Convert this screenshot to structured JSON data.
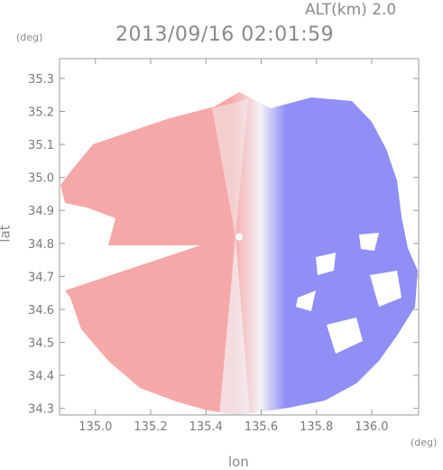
{
  "header": {
    "altitude": "ALT(km) 2.0",
    "timestamp": "2013/09/16 02:01:59"
  },
  "chart_data": {
    "type": "heatmap",
    "title": "2013/09/16 02:01:59",
    "xlabel": "lon",
    "ylabel": "lat",
    "xunit": "(deg)",
    "yunit": "(deg)",
    "xlim": [
      134.87,
      136.17
    ],
    "ylim": [
      34.28,
      35.36
    ],
    "xticks": [
      "135.0",
      "135.2",
      "135.4",
      "135.6",
      "135.8",
      "136.0"
    ],
    "yticks": [
      "34.3",
      "34.4",
      "34.5",
      "34.6",
      "34.7",
      "34.8",
      "34.9",
      "35.0",
      "35.1",
      "35.2",
      "35.3"
    ],
    "radar_center": {
      "lon": 135.52,
      "lat": 34.82
    },
    "colors": {
      "approaching": "#8f8ff5",
      "receding": "#f5a8a8",
      "near_zero": "#f4f2f6",
      "frame": "#999999",
      "text": "#8a8a8a"
    },
    "grid": false
  }
}
